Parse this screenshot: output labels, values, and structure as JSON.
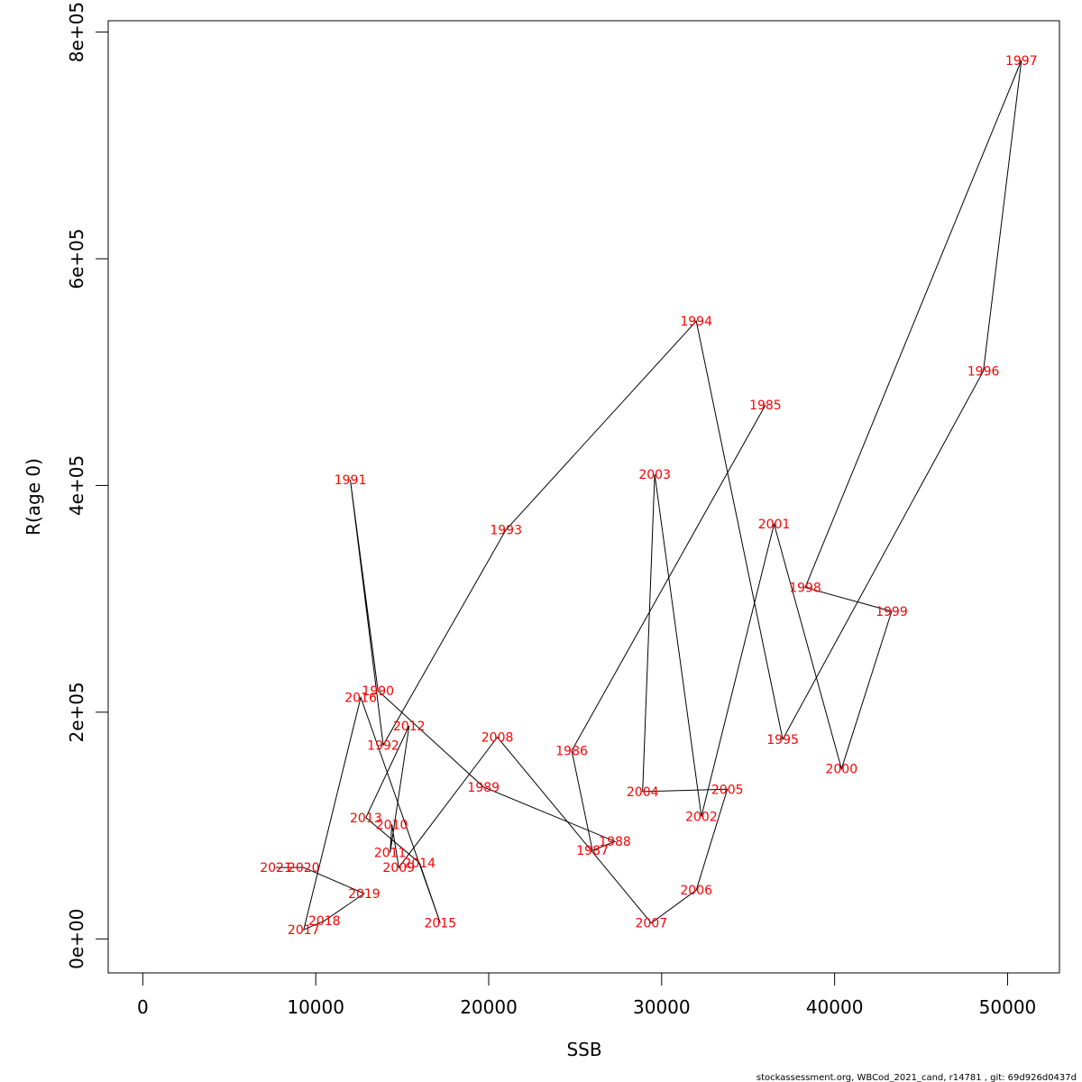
{
  "chart_data": {
    "type": "scatter",
    "title": "",
    "xlabel": "SSB",
    "ylabel": "R(age 0)",
    "xlim": [
      -2000,
      53000
    ],
    "ylim": [
      -30000,
      810000
    ],
    "x_ticks": [
      0,
      10000,
      20000,
      30000,
      40000,
      50000
    ],
    "x_tick_labels": [
      "0",
      "10000",
      "20000",
      "30000",
      "40000",
      "50000"
    ],
    "y_ticks": [
      0,
      200000,
      400000,
      600000,
      800000
    ],
    "y_tick_labels": [
      "0e+00",
      "2e+05",
      "4e+05",
      "6e+05",
      "8e+05"
    ],
    "grid": false,
    "legend": "none",
    "point_color": "#ff0000",
    "line_color": "#000000",
    "points": [
      {
        "year": "1985",
        "x": 36000,
        "y": 471000
      },
      {
        "year": "1986",
        "x": 24800,
        "y": 166000
      },
      {
        "year": "1987",
        "x": 26000,
        "y": 78000
      },
      {
        "year": "1988",
        "x": 27300,
        "y": 86000
      },
      {
        "year": "1989",
        "x": 19700,
        "y": 134000
      },
      {
        "year": "1990",
        "x": 13600,
        "y": 219000
      },
      {
        "year": "1991",
        "x": 12000,
        "y": 405000
      },
      {
        "year": "1992",
        "x": 13900,
        "y": 171000
      },
      {
        "year": "1993",
        "x": 21000,
        "y": 361000
      },
      {
        "year": "1994",
        "x": 32000,
        "y": 545000
      },
      {
        "year": "1995",
        "x": 37000,
        "y": 176000
      },
      {
        "year": "1996",
        "x": 48600,
        "y": 501000
      },
      {
        "year": "1997",
        "x": 50800,
        "y": 775000
      },
      {
        "year": "1998",
        "x": 38300,
        "y": 310000
      },
      {
        "year": "1999",
        "x": 43300,
        "y": 289000
      },
      {
        "year": "2000",
        "x": 40400,
        "y": 150000
      },
      {
        "year": "2001",
        "x": 36500,
        "y": 366000
      },
      {
        "year": "2002",
        "x": 32300,
        "y": 108000
      },
      {
        "year": "2003",
        "x": 29600,
        "y": 410000
      },
      {
        "year": "2004",
        "x": 28900,
        "y": 130000
      },
      {
        "year": "2005",
        "x": 33800,
        "y": 132000
      },
      {
        "year": "2006",
        "x": 32000,
        "y": 43000
      },
      {
        "year": "2007",
        "x": 29400,
        "y": 14000
      },
      {
        "year": "2008",
        "x": 20500,
        "y": 178000
      },
      {
        "year": "2009",
        "x": 14800,
        "y": 63000
      },
      {
        "year": "2010",
        "x": 14400,
        "y": 101000
      },
      {
        "year": "2011",
        "x": 14300,
        "y": 76000
      },
      {
        "year": "2012",
        "x": 15400,
        "y": 188000
      },
      {
        "year": "2013",
        "x": 12900,
        "y": 107000
      },
      {
        "year": "2014",
        "x": 16000,
        "y": 67000
      },
      {
        "year": "2015",
        "x": 17200,
        "y": 14000
      },
      {
        "year": "2016",
        "x": 12600,
        "y": 213000
      },
      {
        "year": "2017",
        "x": 9300,
        "y": 8000
      },
      {
        "year": "2018",
        "x": 10500,
        "y": 16000
      },
      {
        "year": "2019",
        "x": 12800,
        "y": 40000
      },
      {
        "year": "2020",
        "x": 9300,
        "y": 63000
      },
      {
        "year": "2021",
        "x": 7700,
        "y": 63000
      }
    ]
  },
  "footer": {
    "text": "stockassessment.org, WBCod_2021_cand, r14781 , git: 69d926d0437d"
  }
}
